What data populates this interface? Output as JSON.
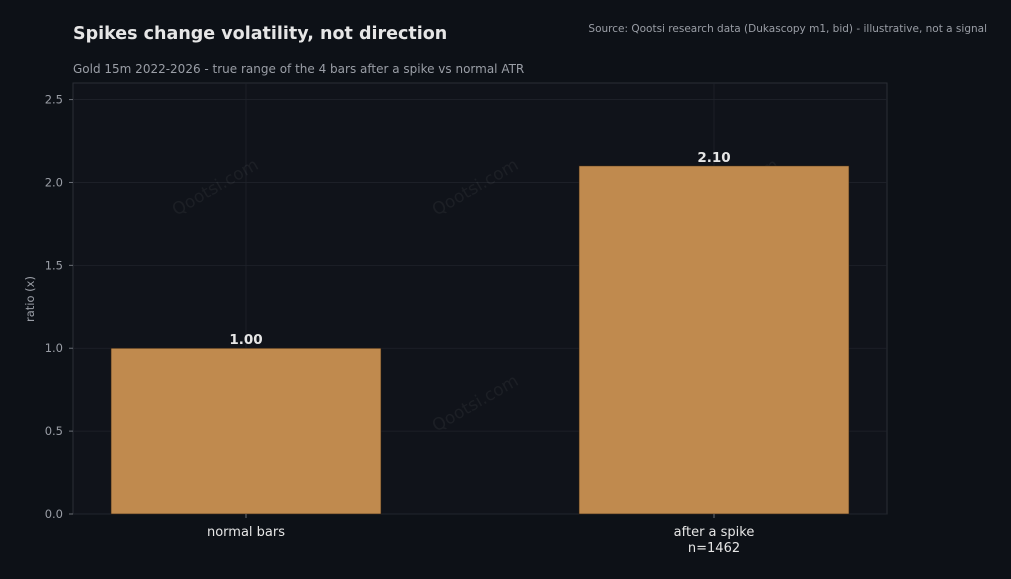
{
  "header": {
    "title": "Spikes change volatility, not direction",
    "subtitle": "Gold 15m 2022-2026 - true range of the 4 bars after a spike vs normal ATR",
    "source": "Source: Qootsi research data (Dukascopy m1, bid) - illustrative, not a signal"
  },
  "watermark": "Qootsi.com",
  "colors": {
    "background": "#0d1117",
    "plot_background": "#10131a",
    "bar": "#c08a4e",
    "grid": "#1f232b",
    "axis_text": "#9a9ea6",
    "label_text": "#e6e6e6"
  },
  "chart_data": {
    "type": "bar",
    "categories": [
      [
        "normal bars"
      ],
      [
        "after a spike",
        "n=1462"
      ]
    ],
    "values": [
      1.0,
      2.1
    ],
    "value_labels": [
      "1.00",
      "2.10"
    ],
    "title": "Spikes change volatility, not direction",
    "subtitle": "Gold 15m 2022-2026 - true range of the 4 bars after a spike vs normal ATR",
    "xlabel": "",
    "ylabel": "ratio (x)",
    "ylim": [
      0,
      2.6
    ],
    "yticks": [
      0.0,
      0.5,
      1.0,
      1.5,
      2.0,
      2.5
    ],
    "ytick_labels": [
      "0.0",
      "0.5",
      "1.0",
      "1.5",
      "2.0",
      "2.5"
    ],
    "grid": true,
    "legend": "none"
  }
}
